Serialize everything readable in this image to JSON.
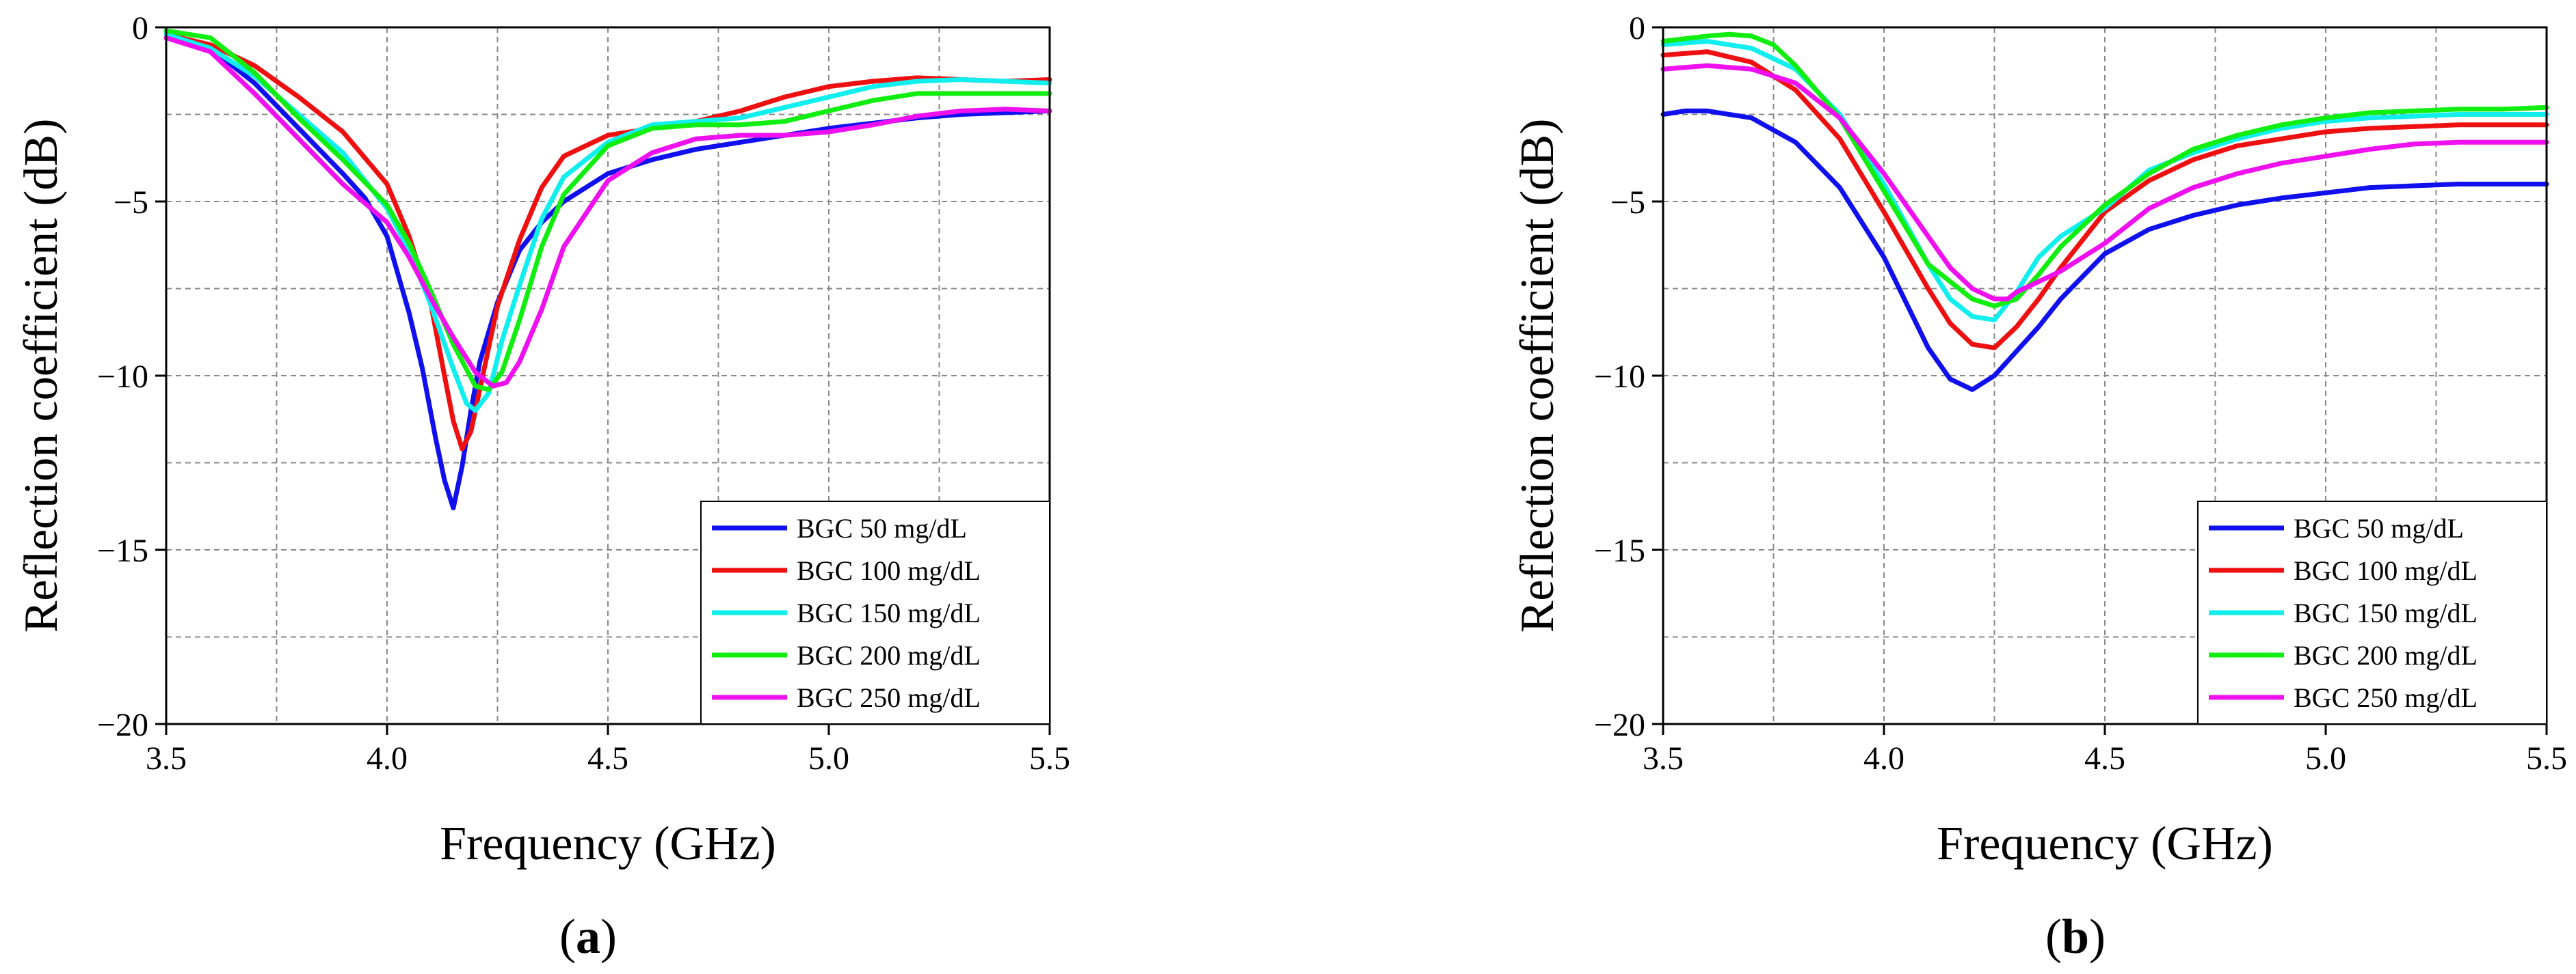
{
  "chart_data": [
    {
      "panel": "a",
      "panel_label": "a",
      "type": "line",
      "xlabel": "Frequency (GHz)",
      "ylabel": "Reflection coefficient (dB)",
      "xlim": [
        3.5,
        5.5
      ],
      "ylim": [
        -20,
        0
      ],
      "xticks": [
        3.5,
        4.0,
        4.5,
        5.0,
        5.5
      ],
      "xtick_labels": [
        "3.5",
        "4.0",
        "4.5",
        "5.0",
        "5.5"
      ],
      "yticks": [
        0,
        -5,
        -10,
        -15,
        -20
      ],
      "ytick_labels": [
        "0",
        "−5",
        "−10",
        "−15",
        "−20"
      ],
      "grid": true,
      "legend_position": "bottom-right",
      "series": [
        {
          "name": "BGC 50 mg/dL",
          "color": "#1010ee",
          "x": [
            3.5,
            3.6,
            3.7,
            3.8,
            3.9,
            3.95,
            4.0,
            4.05,
            4.08,
            4.11,
            4.13,
            4.15,
            4.17,
            4.19,
            4.21,
            4.25,
            4.3,
            4.35,
            4.4,
            4.5,
            4.6,
            4.7,
            4.8,
            4.9,
            5.0,
            5.1,
            5.2,
            5.3,
            5.4,
            5.5
          ],
          "y": [
            -0.3,
            -0.6,
            -1.6,
            -2.9,
            -4.2,
            -4.9,
            -6.0,
            -8.2,
            -9.8,
            -11.8,
            -13.0,
            -13.8,
            -12.6,
            -11.0,
            -9.6,
            -7.9,
            -6.4,
            -5.6,
            -5.0,
            -4.2,
            -3.8,
            -3.5,
            -3.3,
            -3.1,
            -2.9,
            -2.75,
            -2.6,
            -2.5,
            -2.45,
            -2.4
          ]
        },
        {
          "name": "BGC 100 mg/dL",
          "color": "#ee1010",
          "x": [
            3.5,
            3.6,
            3.7,
            3.8,
            3.9,
            4.0,
            4.05,
            4.1,
            4.13,
            4.15,
            4.17,
            4.19,
            4.22,
            4.25,
            4.3,
            4.35,
            4.4,
            4.5,
            4.6,
            4.7,
            4.8,
            4.9,
            5.0,
            5.1,
            5.2,
            5.3,
            5.4,
            5.5
          ],
          "y": [
            -0.2,
            -0.5,
            -1.1,
            -2.0,
            -3.0,
            -4.5,
            -6.0,
            -8.0,
            -10.0,
            -11.3,
            -12.1,
            -11.6,
            -9.8,
            -8.0,
            -6.1,
            -4.6,
            -3.7,
            -3.1,
            -2.9,
            -2.7,
            -2.4,
            -2.0,
            -1.7,
            -1.55,
            -1.45,
            -1.5,
            -1.55,
            -1.5
          ]
        },
        {
          "name": "BGC 150 mg/dL",
          "color": "#10eeee",
          "x": [
            3.5,
            3.6,
            3.7,
            3.8,
            3.9,
            4.0,
            4.05,
            4.1,
            4.15,
            4.18,
            4.2,
            4.23,
            4.26,
            4.3,
            4.35,
            4.4,
            4.5,
            4.6,
            4.7,
            4.8,
            4.9,
            5.0,
            5.1,
            5.2,
            5.3,
            5.4,
            5.5
          ],
          "y": [
            -0.2,
            -0.6,
            -1.4,
            -2.5,
            -3.6,
            -5.2,
            -6.4,
            -8.0,
            -9.8,
            -10.8,
            -11.0,
            -10.5,
            -9.0,
            -7.4,
            -5.5,
            -4.3,
            -3.3,
            -2.8,
            -2.7,
            -2.6,
            -2.3,
            -2.0,
            -1.7,
            -1.55,
            -1.5,
            -1.55,
            -1.6
          ]
        },
        {
          "name": "BGC 200 mg/dL",
          "color": "#10ee10",
          "x": [
            3.5,
            3.6,
            3.7,
            3.8,
            3.9,
            4.0,
            4.05,
            4.1,
            4.15,
            4.2,
            4.23,
            4.26,
            4.3,
            4.35,
            4.4,
            4.5,
            4.6,
            4.7,
            4.8,
            4.9,
            5.0,
            5.1,
            5.2,
            5.3,
            5.4,
            5.5
          ],
          "y": [
            -0.1,
            -0.3,
            -1.3,
            -2.6,
            -3.8,
            -5.1,
            -6.2,
            -7.6,
            -9.1,
            -10.3,
            -10.4,
            -9.9,
            -8.4,
            -6.3,
            -4.8,
            -3.4,
            -2.9,
            -2.8,
            -2.8,
            -2.7,
            -2.4,
            -2.1,
            -1.9,
            -1.9,
            -1.9,
            -1.9
          ]
        },
        {
          "name": "BGC 250 mg/dL",
          "color": "#ee10ee",
          "x": [
            3.5,
            3.6,
            3.7,
            3.8,
            3.9,
            4.0,
            4.05,
            4.1,
            4.15,
            4.2,
            4.24,
            4.27,
            4.3,
            4.35,
            4.4,
            4.5,
            4.6,
            4.7,
            4.8,
            4.9,
            5.0,
            5.1,
            5.2,
            5.3,
            5.4,
            5.5
          ],
          "y": [
            -0.3,
            -0.7,
            -1.9,
            -3.2,
            -4.5,
            -5.6,
            -6.6,
            -7.8,
            -8.9,
            -9.9,
            -10.3,
            -10.2,
            -9.6,
            -8.1,
            -6.3,
            -4.4,
            -3.6,
            -3.2,
            -3.1,
            -3.1,
            -3.0,
            -2.8,
            -2.55,
            -2.4,
            -2.35,
            -2.4
          ]
        }
      ]
    },
    {
      "panel": "b",
      "panel_label": "b",
      "type": "line",
      "xlabel": "Frequency (GHz)",
      "ylabel": "Reflection coefficient (dB)",
      "xlim": [
        3.5,
        5.5
      ],
      "ylim": [
        -20,
        0
      ],
      "xticks": [
        3.5,
        4.0,
        4.5,
        5.0,
        5.5
      ],
      "xtick_labels": [
        "3.5",
        "4.0",
        "4.5",
        "5.0",
        "5.5"
      ],
      "yticks": [
        0,
        -5,
        -10,
        -15,
        -20
      ],
      "ytick_labels": [
        "0",
        "−5",
        "−10",
        "−15",
        "−20"
      ],
      "grid": true,
      "legend_position": "bottom-right",
      "series": [
        {
          "name": "BGC 50 mg/dL",
          "color": "#1010ee",
          "x": [
            3.5,
            3.55,
            3.6,
            3.7,
            3.8,
            3.9,
            4.0,
            4.05,
            4.1,
            4.15,
            4.2,
            4.25,
            4.3,
            4.35,
            4.4,
            4.5,
            4.6,
            4.7,
            4.8,
            4.9,
            5.0,
            5.1,
            5.2,
            5.3,
            5.4,
            5.5
          ],
          "y": [
            -2.5,
            -2.4,
            -2.4,
            -2.6,
            -3.3,
            -4.6,
            -6.6,
            -7.9,
            -9.2,
            -10.1,
            -10.4,
            -10.0,
            -9.3,
            -8.6,
            -7.8,
            -6.5,
            -5.8,
            -5.4,
            -5.1,
            -4.9,
            -4.75,
            -4.6,
            -4.55,
            -4.5,
            -4.5,
            -4.5
          ]
        },
        {
          "name": "BGC 100 mg/dL",
          "color": "#ee1010",
          "x": [
            3.5,
            3.6,
            3.7,
            3.8,
            3.9,
            4.0,
            4.1,
            4.15,
            4.2,
            4.25,
            4.3,
            4.35,
            4.4,
            4.5,
            4.6,
            4.7,
            4.8,
            4.9,
            5.0,
            5.1,
            5.2,
            5.3,
            5.4,
            5.5
          ],
          "y": [
            -0.8,
            -0.7,
            -1.0,
            -1.8,
            -3.2,
            -5.3,
            -7.5,
            -8.5,
            -9.1,
            -9.2,
            -8.6,
            -7.8,
            -6.9,
            -5.3,
            -4.4,
            -3.8,
            -3.4,
            -3.2,
            -3.0,
            -2.9,
            -2.85,
            -2.8,
            -2.8,
            -2.8
          ]
        },
        {
          "name": "BGC 150 mg/dL",
          "color": "#10eeee",
          "x": [
            3.5,
            3.6,
            3.7,
            3.8,
            3.9,
            4.0,
            4.1,
            4.15,
            4.2,
            4.25,
            4.3,
            4.35,
            4.4,
            4.5,
            4.6,
            4.7,
            4.8,
            4.9,
            5.0,
            5.1,
            5.2,
            5.3,
            5.4,
            5.5
          ],
          "y": [
            -0.5,
            -0.4,
            -0.6,
            -1.2,
            -2.5,
            -4.5,
            -6.8,
            -7.8,
            -8.3,
            -8.4,
            -7.6,
            -6.6,
            -6.0,
            -5.2,
            -4.1,
            -3.6,
            -3.2,
            -2.9,
            -2.7,
            -2.6,
            -2.55,
            -2.5,
            -2.5,
            -2.5
          ]
        },
        {
          "name": "BGC 200 mg/dL",
          "color": "#10ee10",
          "x": [
            3.5,
            3.6,
            3.65,
            3.7,
            3.75,
            3.8,
            3.9,
            4.0,
            4.1,
            4.2,
            4.25,
            4.3,
            4.35,
            4.4,
            4.5,
            4.6,
            4.7,
            4.8,
            4.9,
            5.0,
            5.1,
            5.2,
            5.3,
            5.4,
            5.5
          ],
          "y": [
            -0.4,
            -0.25,
            -0.2,
            -0.25,
            -0.5,
            -1.1,
            -2.6,
            -4.7,
            -6.8,
            -7.8,
            -8.0,
            -7.8,
            -7.1,
            -6.3,
            -5.1,
            -4.2,
            -3.5,
            -3.1,
            -2.8,
            -2.6,
            -2.45,
            -2.4,
            -2.35,
            -2.35,
            -2.3
          ]
        },
        {
          "name": "BGC 250 mg/dL",
          "color": "#ee10ee",
          "x": [
            3.5,
            3.6,
            3.7,
            3.8,
            3.9,
            4.0,
            4.1,
            4.15,
            4.2,
            4.25,
            4.28,
            4.3,
            4.35,
            4.4,
            4.5,
            4.6,
            4.7,
            4.8,
            4.9,
            5.0,
            5.1,
            5.2,
            5.3,
            5.4,
            5.5
          ],
          "y": [
            -1.2,
            -1.1,
            -1.2,
            -1.6,
            -2.6,
            -4.2,
            -6.0,
            -6.9,
            -7.5,
            -7.8,
            -7.8,
            -7.6,
            -7.3,
            -7.0,
            -6.2,
            -5.2,
            -4.6,
            -4.2,
            -3.9,
            -3.7,
            -3.5,
            -3.35,
            -3.3,
            -3.3,
            -3.3
          ]
        }
      ]
    }
  ]
}
